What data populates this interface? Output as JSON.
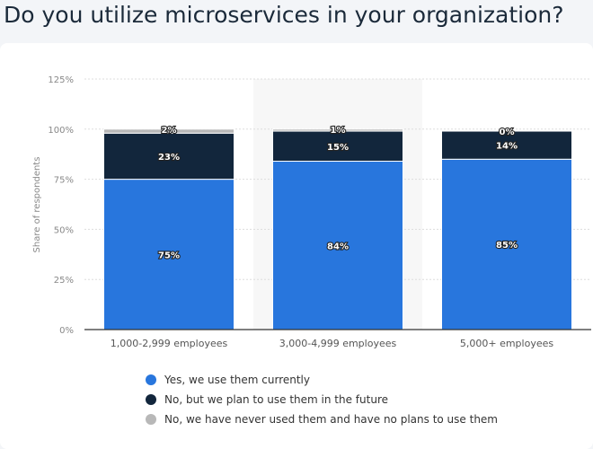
{
  "title": "Do you utilize microservices in your organization?",
  "chart_data": {
    "type": "bar",
    "stacked": true,
    "title": "Do you utilize microservices in your organization?",
    "xlabel": "",
    "ylabel": "Share of respondents",
    "ylim": [
      0,
      125
    ],
    "yticks": [
      "0%",
      "25%",
      "50%",
      "75%",
      "100%",
      "125%"
    ],
    "categories": [
      "1,000-2,999 employees",
      "3,000-4,999 employees",
      "5,000+ employees"
    ],
    "series": [
      {
        "name": "Yes, we use them currently",
        "color": "#2876dd",
        "values": [
          75,
          84,
          85
        ]
      },
      {
        "name": "No, but we plan to use them in the future",
        "color": "#12263c",
        "values": [
          23,
          15,
          14
        ]
      },
      {
        "name": "No, we have never used them and have no plans to use them",
        "color": "#b8b8b8",
        "values": [
          2,
          1,
          0
        ]
      }
    ],
    "legend": "bottom-left"
  }
}
